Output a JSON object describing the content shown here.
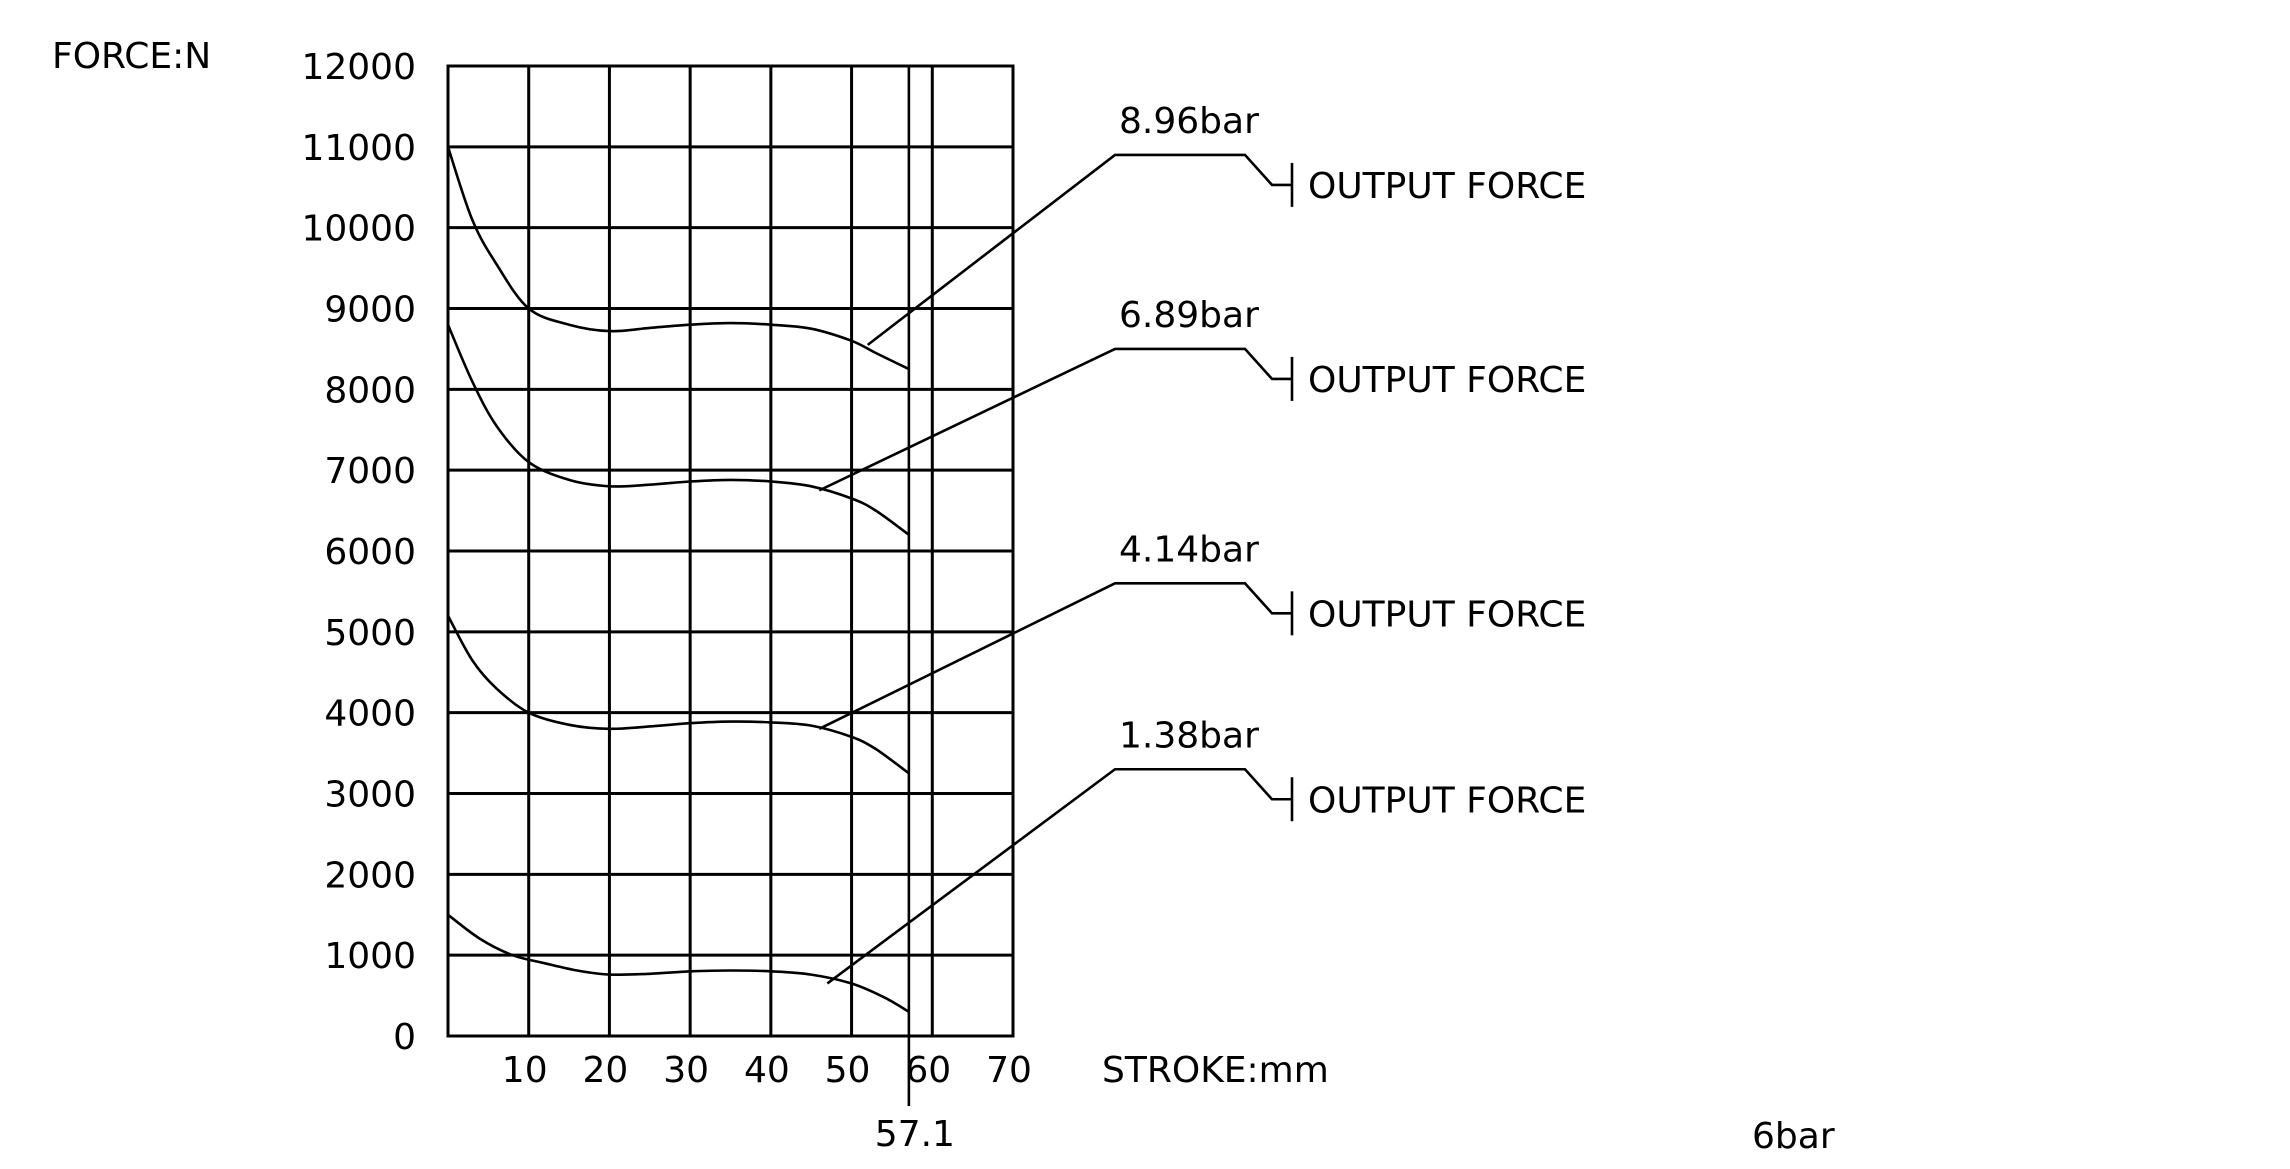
{
  "chart_data": {
    "type": "line",
    "ylabel": "FORCE:N",
    "xlabel": "STROKE:mm",
    "xlim": [
      0,
      70
    ],
    "ylim": [
      0,
      12000
    ],
    "grid": true,
    "y_ticks": [
      "0",
      "1000",
      "2000",
      "3000",
      "4000",
      "5000",
      "6000",
      "7000",
      "8000",
      "9000",
      "10000",
      "11000",
      "12000"
    ],
    "x_ticks": [
      "10",
      "20",
      "30",
      "40",
      "50",
      "60",
      "70"
    ],
    "stroke_marker": {
      "value": 57.1,
      "label": "57.1"
    },
    "series": [
      {
        "name": "8.96bar",
        "annotation": "OUTPUT FORCE",
        "label_at_y": 10900,
        "points": [
          [
            0,
            11000
          ],
          [
            3,
            10100
          ],
          [
            6,
            9550
          ],
          [
            10,
            9000
          ],
          [
            15,
            8800
          ],
          [
            20,
            8720
          ],
          [
            25,
            8760
          ],
          [
            30,
            8800
          ],
          [
            35,
            8820
          ],
          [
            40,
            8800
          ],
          [
            45,
            8750
          ],
          [
            50,
            8600
          ],
          [
            53,
            8450
          ],
          [
            57.1,
            8250
          ]
        ],
        "leader_from": [
          52,
          8550
        ]
      },
      {
        "name": "6.89bar",
        "annotation": "OUTPUT FORCE",
        "label_at_y": 8500,
        "points": [
          [
            0,
            8800
          ],
          [
            3,
            8100
          ],
          [
            6,
            7550
          ],
          [
            10,
            7100
          ],
          [
            15,
            6880
          ],
          [
            20,
            6800
          ],
          [
            25,
            6820
          ],
          [
            30,
            6860
          ],
          [
            35,
            6880
          ],
          [
            40,
            6860
          ],
          [
            45,
            6800
          ],
          [
            50,
            6650
          ],
          [
            53,
            6500
          ],
          [
            57.1,
            6200
          ]
        ],
        "leader_from": [
          46,
          6750
        ]
      },
      {
        "name": "4.14bar",
        "annotation": "OUTPUT FORCE",
        "label_at_y": 5600,
        "points": [
          [
            0,
            5200
          ],
          [
            3,
            4650
          ],
          [
            6,
            4300
          ],
          [
            10,
            4000
          ],
          [
            15,
            3850
          ],
          [
            20,
            3800
          ],
          [
            25,
            3830
          ],
          [
            30,
            3870
          ],
          [
            35,
            3890
          ],
          [
            40,
            3880
          ],
          [
            45,
            3840
          ],
          [
            50,
            3700
          ],
          [
            53,
            3550
          ],
          [
            57.1,
            3250
          ]
        ],
        "leader_from": [
          46,
          3800
        ]
      },
      {
        "name": "1.38bar",
        "annotation": "OUTPUT FORCE",
        "label_at_y": 3300,
        "points": [
          [
            0,
            1500
          ],
          [
            4,
            1200
          ],
          [
            8,
            1000
          ],
          [
            12,
            900
          ],
          [
            16,
            810
          ],
          [
            20,
            760
          ],
          [
            25,
            770
          ],
          [
            30,
            800
          ],
          [
            35,
            810
          ],
          [
            40,
            800
          ],
          [
            45,
            760
          ],
          [
            50,
            650
          ],
          [
            54,
            480
          ],
          [
            57.1,
            300
          ]
        ],
        "leader_from": [
          47,
          650
        ]
      }
    ],
    "corner_note": "6bar"
  }
}
